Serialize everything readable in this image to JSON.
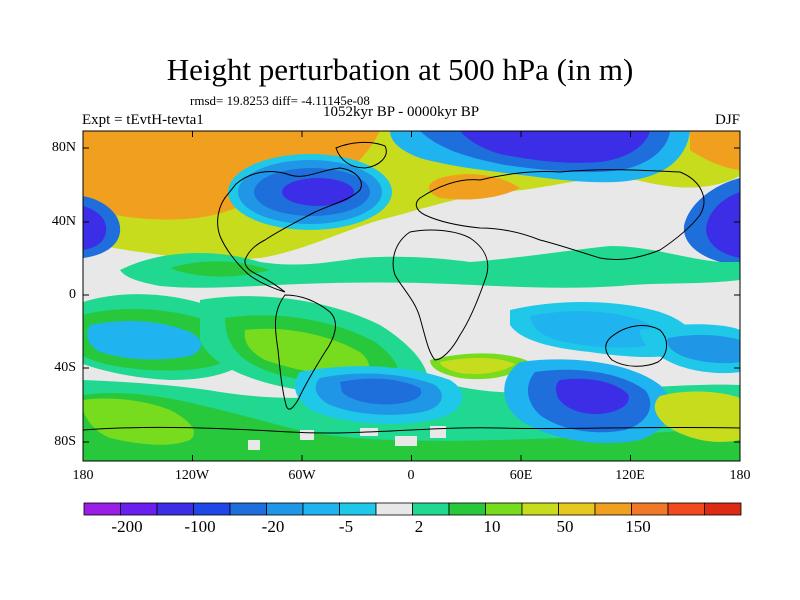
{
  "title": "Height perturbation at 500 hPa (in m)",
  "stats_text": "rmsd= 19.8253  diff= -4.11145e-08",
  "left_label": "Expt = tEvtH-tevta1",
  "center_label": "1052kyr BP - 0000kyr BP",
  "right_label": "DJF",
  "y_ticks": [
    "80N",
    "40N",
    "0",
    "40S",
    "80S"
  ],
  "x_ticks": [
    "180",
    "120W",
    "60W",
    "0",
    "60E",
    "120E",
    "180"
  ],
  "colorbar": {
    "labels": [
      "-200",
      "-100",
      "-20",
      "-5",
      "2",
      "10",
      "50",
      "150"
    ],
    "colors": [
      "#9a1ee6",
      "#6a1ef0",
      "#3c2ee6",
      "#1f46e6",
      "#1e6edc",
      "#1f96e6",
      "#1fb4f0",
      "#1fc8e8",
      "#e8e8e8",
      "#20d890",
      "#28c83c",
      "#78dc1e",
      "#c8dc1e",
      "#e6c81e",
      "#f0a01e",
      "#f07828",
      "#f04a1e",
      "#dc2a14"
    ]
  },
  "map_colors": {
    "gray": "#e8e8e8",
    "orange": "#f0a01e",
    "yellow": "#c8dc1e",
    "lightgreen": "#78dc1e",
    "green": "#28c83c",
    "teal": "#20d890",
    "cyan": "#1fc8e8",
    "sky": "#1f96e6",
    "blue": "#1e6edc",
    "darkblue": "#3c2ee6"
  }
}
